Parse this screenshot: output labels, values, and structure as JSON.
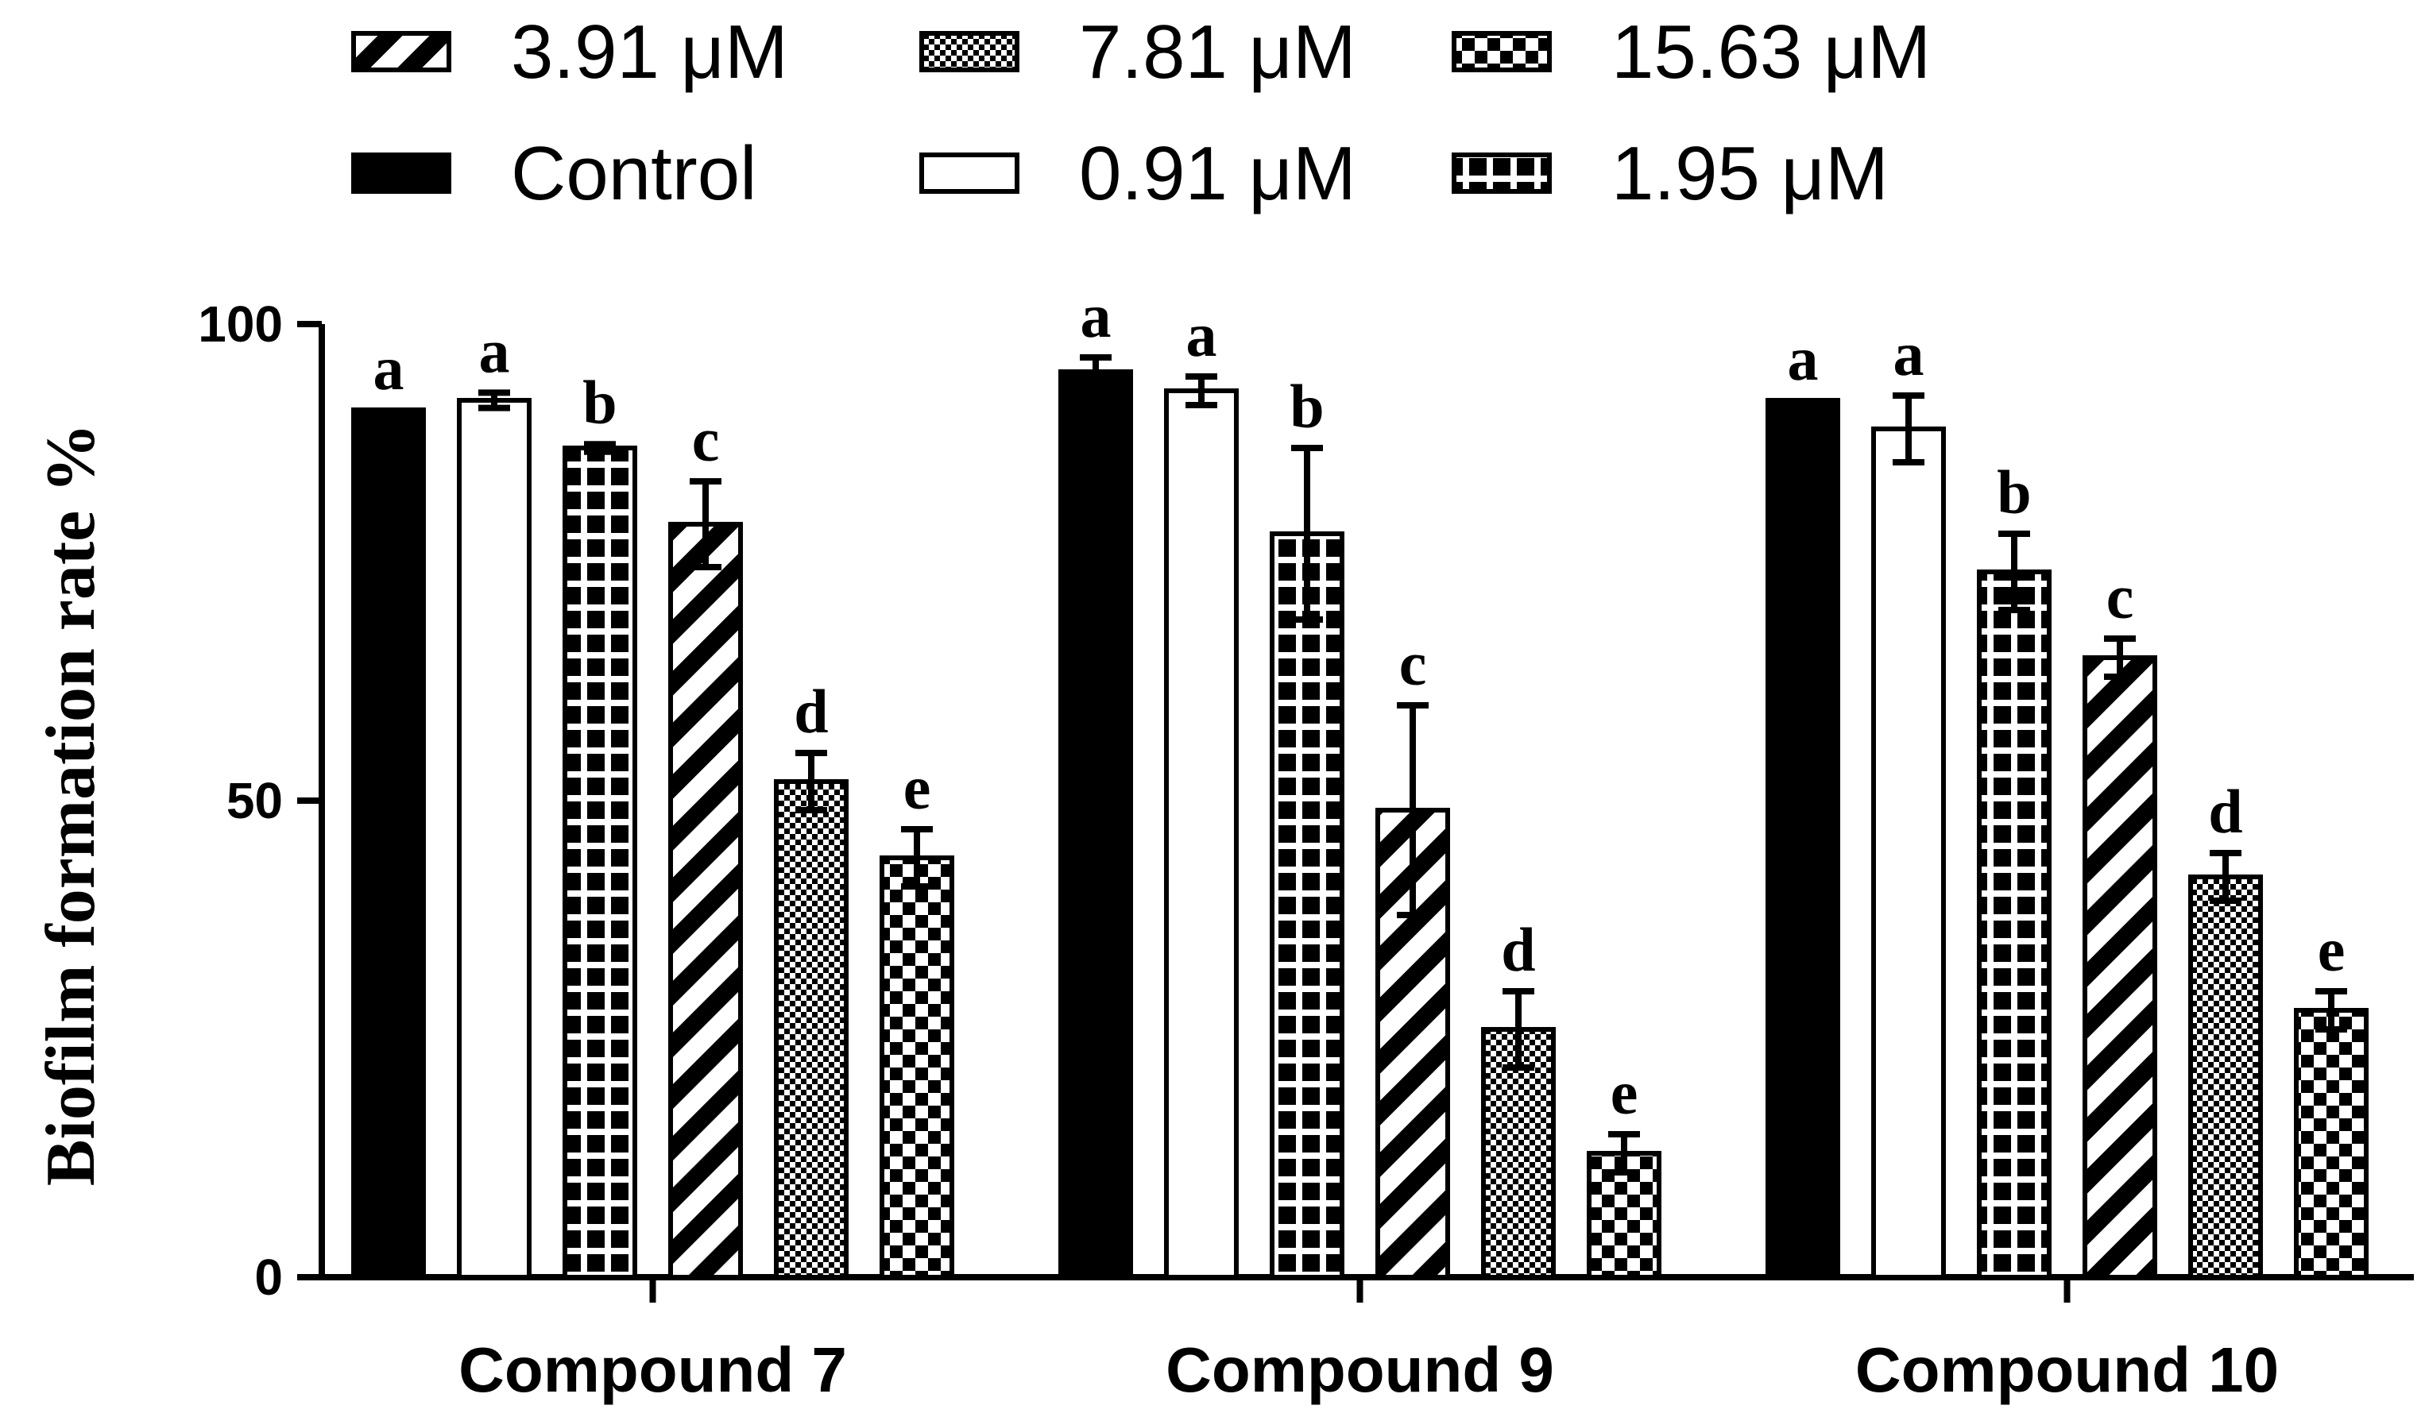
{
  "chart_data": {
    "type": "bar",
    "title": "",
    "xlabel": "",
    "ylabel": "Biofilm formation rate %",
    "ylim": [
      0,
      100
    ],
    "yticks": [
      0,
      50,
      100
    ],
    "categories": [
      "Compound 7",
      "Compound 9",
      "Compound 10"
    ],
    "series": [
      {
        "name": "Control",
        "pattern": "solid",
        "values": [
          91,
          95,
          92
        ],
        "errors": [
          0,
          1.5,
          0
        ],
        "labels": [
          "a",
          "a",
          "a"
        ]
      },
      {
        "name": "0.91 μM",
        "pattern": "open",
        "values": [
          92,
          93,
          89
        ],
        "errors": [
          0.8,
          1.5,
          3.5
        ],
        "labels": [
          "a",
          "a",
          "a"
        ]
      },
      {
        "name": "1.95 μM",
        "pattern": "cross",
        "values": [
          87,
          78,
          74
        ],
        "errors": [
          0.4,
          9,
          4
        ],
        "labels": [
          "b",
          "b",
          "b"
        ]
      },
      {
        "name": "3.91 μM",
        "pattern": "diagonal",
        "values": [
          79,
          49,
          65
        ],
        "errors": [
          4.5,
          11,
          2
        ],
        "labels": [
          "c",
          "c",
          "c"
        ]
      },
      {
        "name": "7.81 μM",
        "pattern": "finecheck",
        "values": [
          52,
          26,
          42
        ],
        "errors": [
          3,
          4,
          2.5
        ],
        "labels": [
          "d",
          "d",
          "d"
        ]
      },
      {
        "name": "15.63 μM",
        "pattern": "check",
        "values": [
          44,
          13,
          28
        ],
        "errors": [
          3,
          2,
          2
        ],
        "labels": [
          "e",
          "e",
          "e"
        ]
      }
    ],
    "legend": {
      "position": "top",
      "rows": [
        [
          {
            "label": "3.91 μM",
            "series": 3
          },
          {
            "label": "7.81 μM",
            "series": 4
          },
          {
            "label": "15.63 μM",
            "series": 5
          }
        ],
        [
          {
            "label": "Control",
            "series": 0
          },
          {
            "label": "0.91 μM",
            "series": 1
          },
          {
            "label": "1.95 μM",
            "series": 2
          }
        ]
      ]
    }
  }
}
